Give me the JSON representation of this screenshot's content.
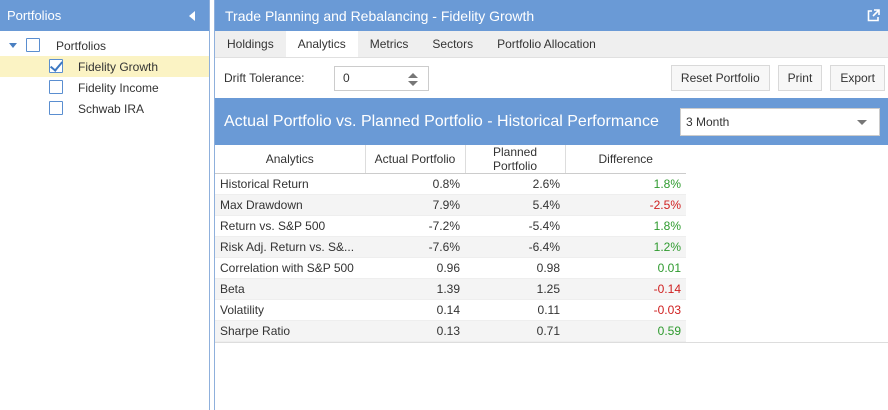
{
  "left_panel": {
    "title": "Portfolios",
    "tree": {
      "root": "Portfolios",
      "children": [
        {
          "label": "Fidelity Growth",
          "checked": true
        },
        {
          "label": "Fidelity Income",
          "checked": false
        },
        {
          "label": "Schwab IRA",
          "checked": false
        }
      ]
    }
  },
  "header": {
    "title": "Trade Planning and Rebalancing - Fidelity Growth",
    "icon": "external-link-icon"
  },
  "tabs": [
    {
      "label": "Holdings"
    },
    {
      "label": "Analytics"
    },
    {
      "label": "Metrics"
    },
    {
      "label": "Sectors"
    },
    {
      "label": "Portfolio Allocation"
    }
  ],
  "active_tab": "Analytics",
  "toolbar": {
    "drift_label": "Drift Tolerance:",
    "drift_value": "0",
    "reset_label": "Reset Portfolio",
    "print_label": "Print",
    "export_label": "Export"
  },
  "section": {
    "title": "Actual Portfolio vs. Planned Portfolio - Historical Performance",
    "period": "3 Month"
  },
  "table": {
    "headers": [
      "Analytics",
      "Actual Portfolio",
      "Planned Portfolio",
      "Difference"
    ],
    "rows": [
      {
        "name": "Historical Return",
        "actual": "0.8%",
        "planned": "2.6%",
        "diff": "1.8%",
        "sign": "pos"
      },
      {
        "name": "Max Drawdown",
        "actual": "7.9%",
        "planned": "5.4%",
        "diff": "-2.5%",
        "sign": "neg"
      },
      {
        "name": "Return vs. S&P 500",
        "actual": "-7.2%",
        "planned": "-5.4%",
        "diff": "1.8%",
        "sign": "pos"
      },
      {
        "name": "Risk Adj. Return vs. S&...",
        "actual": "-7.6%",
        "planned": "-6.4%",
        "diff": "1.2%",
        "sign": "pos"
      },
      {
        "name": "Correlation with S&P 500",
        "actual": "0.96",
        "planned": "0.98",
        "diff": "0.01",
        "sign": "pos"
      },
      {
        "name": "Beta",
        "actual": "1.39",
        "planned": "1.25",
        "diff": "-0.14",
        "sign": "neg"
      },
      {
        "name": "Volatility",
        "actual": "0.14",
        "planned": "0.11",
        "diff": "-0.03",
        "sign": "neg"
      },
      {
        "name": "Sharpe Ratio",
        "actual": "0.13",
        "planned": "0.71",
        "diff": "0.59",
        "sign": "pos"
      }
    ]
  },
  "colors": {
    "accent": "#6a9ad6",
    "positive": "#2e9a2e",
    "negative": "#d02020",
    "selected_row": "#fbf3c4"
  }
}
